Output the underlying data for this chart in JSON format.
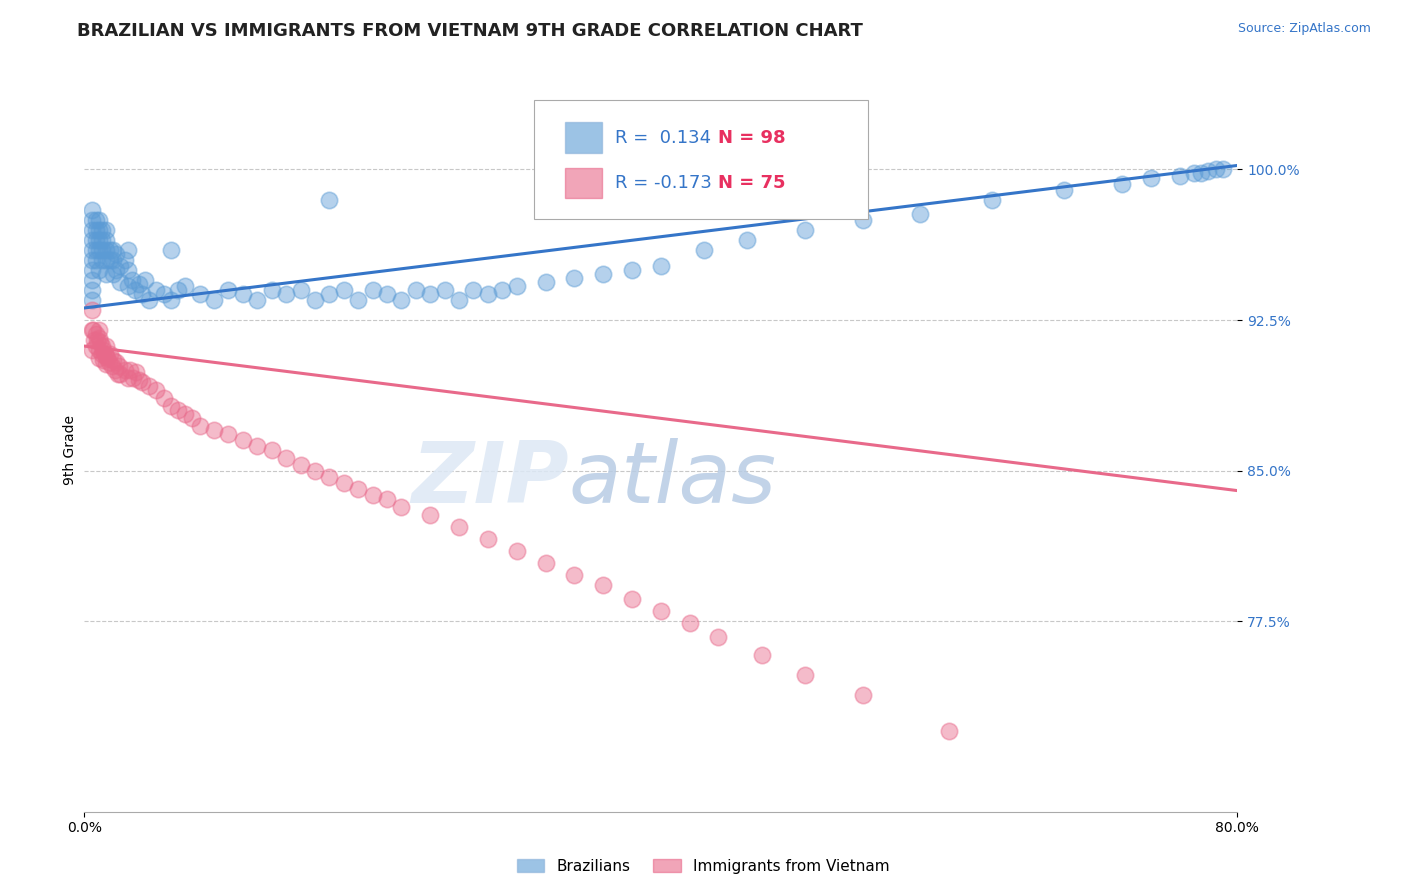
{
  "title": "BRAZILIAN VS IMMIGRANTS FROM VIETNAM 9TH GRADE CORRELATION CHART",
  "source": "Source: ZipAtlas.com",
  "ylabel": "9th Grade",
  "xlim": [
    0.0,
    0.8
  ],
  "ylim": [
    0.68,
    1.04
  ],
  "yticks": [
    0.775,
    0.85,
    0.925,
    1.0
  ],
  "ytick_labels": [
    "77.5%",
    "85.0%",
    "92.5%",
    "100.0%"
  ],
  "xticks": [
    0.0,
    0.8
  ],
  "xtick_labels": [
    "0.0%",
    "80.0%"
  ],
  "blue_R": 0.134,
  "blue_N": 98,
  "pink_R": -0.173,
  "pink_N": 75,
  "blue_color": "#5b9bd5",
  "pink_color": "#e8698a",
  "blue_line_color": "#3575c8",
  "pink_line_color": "#e8698a",
  "legend_label_blue": "Brazilians",
  "legend_label_pink": "Immigrants from Vietnam",
  "watermark_zip": "ZIP",
  "watermark_atlas": "atlas",
  "title_fontsize": 13,
  "axis_label_fontsize": 10,
  "tick_fontsize": 10,
  "source_fontsize": 9,
  "blue_scatter_x": [
    0.005,
    0.005,
    0.005,
    0.005,
    0.005,
    0.005,
    0.005,
    0.005,
    0.005,
    0.005,
    0.008,
    0.008,
    0.008,
    0.008,
    0.008,
    0.01,
    0.01,
    0.01,
    0.01,
    0.01,
    0.012,
    0.012,
    0.012,
    0.012,
    0.015,
    0.015,
    0.015,
    0.015,
    0.018,
    0.018,
    0.02,
    0.02,
    0.02,
    0.022,
    0.022,
    0.025,
    0.025,
    0.028,
    0.03,
    0.03,
    0.033,
    0.035,
    0.038,
    0.04,
    0.042,
    0.045,
    0.05,
    0.055,
    0.06,
    0.065,
    0.07,
    0.08,
    0.09,
    0.1,
    0.11,
    0.12,
    0.13,
    0.14,
    0.15,
    0.16,
    0.17,
    0.18,
    0.19,
    0.2,
    0.21,
    0.22,
    0.23,
    0.24,
    0.25,
    0.26,
    0.27,
    0.28,
    0.29,
    0.3,
    0.32,
    0.34,
    0.36,
    0.38,
    0.4,
    0.43,
    0.46,
    0.5,
    0.54,
    0.58,
    0.63,
    0.68,
    0.72,
    0.74,
    0.76,
    0.77,
    0.775,
    0.78,
    0.785,
    0.79,
    0.17,
    0.06,
    0.03,
    0.015
  ],
  "blue_scatter_y": [
    0.98,
    0.975,
    0.97,
    0.965,
    0.96,
    0.955,
    0.95,
    0.945,
    0.94,
    0.935,
    0.975,
    0.97,
    0.965,
    0.96,
    0.955,
    0.975,
    0.97,
    0.965,
    0.96,
    0.95,
    0.97,
    0.965,
    0.96,
    0.955,
    0.965,
    0.96,
    0.955,
    0.948,
    0.96,
    0.955,
    0.96,
    0.955,
    0.948,
    0.958,
    0.95,
    0.952,
    0.944,
    0.955,
    0.95,
    0.942,
    0.945,
    0.94,
    0.943,
    0.938,
    0.945,
    0.935,
    0.94,
    0.938,
    0.935,
    0.94,
    0.942,
    0.938,
    0.935,
    0.94,
    0.938,
    0.935,
    0.94,
    0.938,
    0.94,
    0.935,
    0.938,
    0.94,
    0.935,
    0.94,
    0.938,
    0.935,
    0.94,
    0.938,
    0.94,
    0.935,
    0.94,
    0.938,
    0.94,
    0.942,
    0.944,
    0.946,
    0.948,
    0.95,
    0.952,
    0.96,
    0.965,
    0.97,
    0.975,
    0.978,
    0.985,
    0.99,
    0.993,
    0.996,
    0.997,
    0.998,
    0.998,
    0.999,
    1.0,
    1.0,
    0.985,
    0.96,
    0.96,
    0.97
  ],
  "pink_scatter_x": [
    0.005,
    0.005,
    0.005,
    0.006,
    0.007,
    0.008,
    0.008,
    0.009,
    0.01,
    0.01,
    0.01,
    0.01,
    0.011,
    0.012,
    0.012,
    0.013,
    0.013,
    0.014,
    0.015,
    0.015,
    0.015,
    0.016,
    0.017,
    0.018,
    0.019,
    0.02,
    0.021,
    0.022,
    0.023,
    0.024,
    0.025,
    0.028,
    0.03,
    0.032,
    0.034,
    0.036,
    0.038,
    0.04,
    0.045,
    0.05,
    0.055,
    0.06,
    0.065,
    0.07,
    0.075,
    0.08,
    0.09,
    0.1,
    0.11,
    0.12,
    0.13,
    0.14,
    0.15,
    0.16,
    0.17,
    0.18,
    0.19,
    0.2,
    0.21,
    0.22,
    0.24,
    0.26,
    0.28,
    0.3,
    0.32,
    0.34,
    0.36,
    0.38,
    0.4,
    0.42,
    0.44,
    0.47,
    0.5,
    0.54,
    0.6
  ],
  "pink_scatter_y": [
    0.93,
    0.92,
    0.91,
    0.92,
    0.915,
    0.918,
    0.912,
    0.915,
    0.92,
    0.916,
    0.91,
    0.906,
    0.914,
    0.912,
    0.908,
    0.91,
    0.905,
    0.908,
    0.912,
    0.907,
    0.903,
    0.906,
    0.904,
    0.908,
    0.902,
    0.905,
    0.9,
    0.904,
    0.898,
    0.902,
    0.898,
    0.9,
    0.896,
    0.9,
    0.896,
    0.899,
    0.895,
    0.894,
    0.892,
    0.89,
    0.886,
    0.882,
    0.88,
    0.878,
    0.876,
    0.872,
    0.87,
    0.868,
    0.865,
    0.862,
    0.86,
    0.856,
    0.853,
    0.85,
    0.847,
    0.844,
    0.841,
    0.838,
    0.836,
    0.832,
    0.828,
    0.822,
    0.816,
    0.81,
    0.804,
    0.798,
    0.793,
    0.786,
    0.78,
    0.774,
    0.767,
    0.758,
    0.748,
    0.738,
    0.72
  ],
  "blue_trendline": [
    0.0,
    0.8,
    0.931,
    1.002
  ],
  "pink_trendline": [
    0.0,
    0.8,
    0.912,
    0.84
  ]
}
